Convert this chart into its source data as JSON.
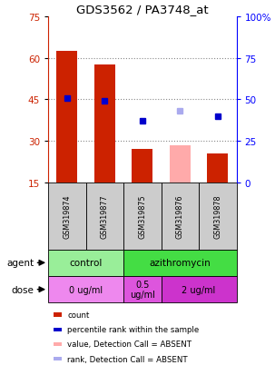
{
  "title": "GDS3562 / PA3748_at",
  "samples": [
    "GSM319874",
    "GSM319877",
    "GSM319875",
    "GSM319876",
    "GSM319878"
  ],
  "bar_values": [
    62.5,
    57.5,
    27.0,
    0,
    25.5
  ],
  "bar_colors": [
    "#cc2200",
    "#cc2200",
    "#cc2200",
    null,
    "#cc2200"
  ],
  "bar_absent_values": [
    0,
    0,
    0,
    28.5,
    0
  ],
  "rank_values": [
    51,
    49,
    37,
    0,
    40
  ],
  "rank_absent_values": [
    0,
    0,
    0,
    43,
    0
  ],
  "ylim_left": [
    15,
    75
  ],
  "ylim_right": [
    0,
    100
  ],
  "yticks_left": [
    15,
    30,
    45,
    60,
    75
  ],
  "yticks_right": [
    0,
    25,
    50,
    75,
    100
  ],
  "agent_groups": [
    {
      "label": "control",
      "span": [
        0,
        2
      ],
      "color": "#99ee99"
    },
    {
      "label": "azithromycin",
      "span": [
        2,
        5
      ],
      "color": "#44dd44"
    }
  ],
  "dose_groups": [
    {
      "label": "0 ug/ml",
      "span": [
        0,
        2
      ],
      "color": "#ee88ee"
    },
    {
      "label": "0.5\nug/ml",
      "span": [
        2,
        3
      ],
      "color": "#dd55dd"
    },
    {
      "label": "2 ug/ml",
      "span": [
        3,
        5
      ],
      "color": "#cc33cc"
    }
  ],
  "legend_items": [
    {
      "label": "count",
      "color": "#cc2200"
    },
    {
      "label": "percentile rank within the sample",
      "color": "#0000cc"
    },
    {
      "label": "value, Detection Call = ABSENT",
      "color": "#ffaaaa"
    },
    {
      "label": "rank, Detection Call = ABSENT",
      "color": "#aaaaee"
    }
  ],
  "background_color": "#ffffff",
  "sample_box_color": "#cccccc",
  "bar_width": 0.55
}
